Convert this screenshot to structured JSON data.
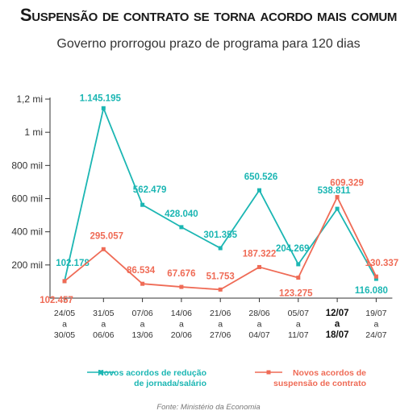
{
  "title": "Suspensão de contrato se torna acordo mais comum",
  "subtitle": "Governo prorrogou prazo de programa para 120 dias",
  "source": "Fonte: Ministério da Economia",
  "colors": {
    "series_reducao": "#1bb6b3",
    "series_suspensao": "#ef6b56",
    "axis": "#333333"
  },
  "chart_data": {
    "type": "line",
    "ylim": [
      0,
      1200000
    ],
    "yticks": [
      {
        "value": 200000,
        "label": "200 mil"
      },
      {
        "value": 400000,
        "label": "400 mil"
      },
      {
        "value": 600000,
        "label": "600 mil"
      },
      {
        "value": 800000,
        "label": "800 mil"
      },
      {
        "value": 1000000,
        "label": "1 mi"
      },
      {
        "value": 1200000,
        "label": "1,2 mi"
      }
    ],
    "categories": [
      {
        "lines": [
          "24/05",
          "a",
          "30/05"
        ],
        "bold": false
      },
      {
        "lines": [
          "31/05",
          "a",
          "06/06"
        ],
        "bold": false
      },
      {
        "lines": [
          "07/06",
          "a",
          "13/06"
        ],
        "bold": false
      },
      {
        "lines": [
          "14/06",
          "a",
          "20/06"
        ],
        "bold": false
      },
      {
        "lines": [
          "21/06",
          "a",
          "27/06"
        ],
        "bold": false
      },
      {
        "lines": [
          "28/06",
          "a",
          "04/07"
        ],
        "bold": false
      },
      {
        "lines": [
          "05/07",
          "a",
          "11/07"
        ],
        "bold": false
      },
      {
        "lines": [
          "12/07",
          "a",
          "18/07"
        ],
        "bold": true
      },
      {
        "lines": [
          "19/07",
          "a",
          "24/07"
        ],
        "bold": false
      }
    ],
    "series": [
      {
        "name": "Novos acordos de redução de jornada/salário",
        "legend_lines": [
          "Novos acordos de redução",
          "de jornada/salário"
        ],
        "color_key": "series_reducao",
        "values": [
          102178,
          1145195,
          562479,
          428040,
          301355,
          650526,
          204269,
          538811,
          116080
        ],
        "labels": [
          "102.178",
          "1.145.195",
          "562.479",
          "428.040",
          "301.355",
          "650.526",
          "204.269",
          "538.811",
          "116.080"
        ]
      },
      {
        "name": "Novos acordos de suspensão de contrato",
        "legend_lines": [
          "Novos acordos de",
          "suspensão de contrato"
        ],
        "color_key": "series_suspensao",
        "values": [
          102457,
          295057,
          86534,
          67676,
          51753,
          187322,
          123275,
          609329,
          130337
        ],
        "labels": [
          "102.457",
          "295.057",
          "86.534",
          "67.676",
          "51.753",
          "187.322",
          "123.275",
          "609.329",
          "130.337"
        ]
      }
    ]
  }
}
